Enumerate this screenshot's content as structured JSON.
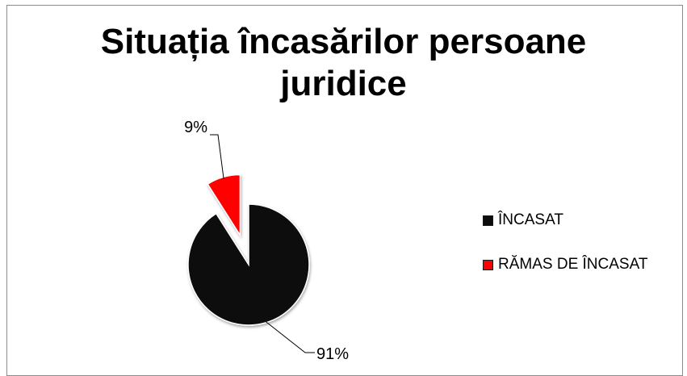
{
  "chart_data": {
    "type": "pie",
    "title": "Situația încasărilor persoane juridice",
    "categories": [
      "ÎNCASAT",
      "RĂMAS DE ÎNCASAT"
    ],
    "values": [
      91,
      9
    ],
    "data_labels": [
      "91%",
      "9%"
    ],
    "colors": [
      "#0d0d0d",
      "#ff0000"
    ],
    "exploded": [
      false,
      true
    ],
    "legend_position": "right"
  }
}
